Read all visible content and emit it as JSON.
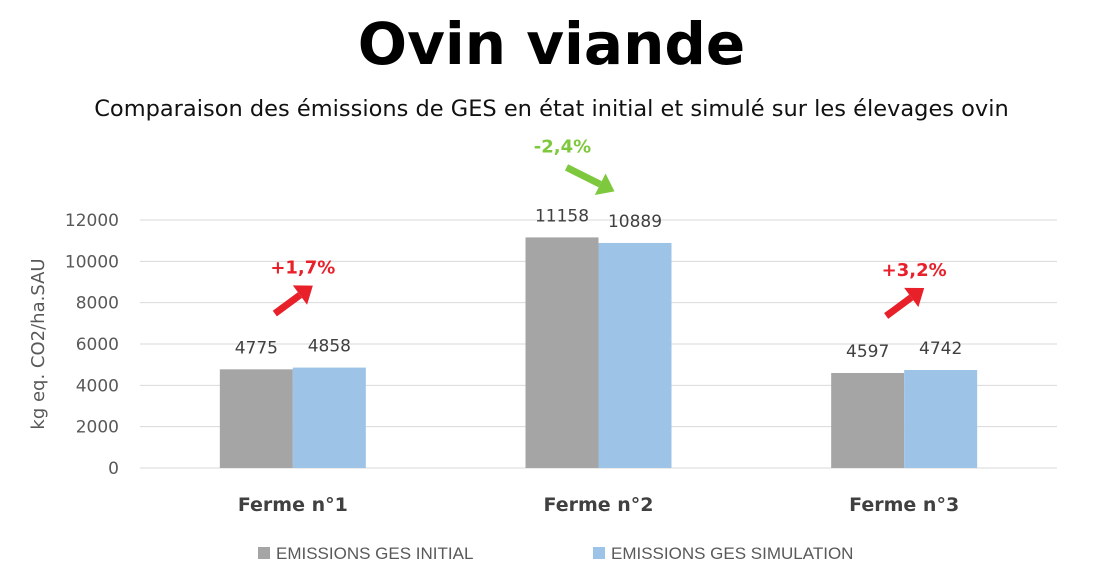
{
  "chart_data": {
    "type": "bar",
    "title": "Ovin viande",
    "subtitle": "Comparaison des émissions de GES en état initial et simulé sur les élevages ovin",
    "ylabel": "kg eq. CO2/ha.SAU",
    "xlabel": "",
    "ylim": [
      0,
      12000
    ],
    "yticks": [
      0,
      2000,
      4000,
      6000,
      8000,
      10000,
      12000
    ],
    "grid": true,
    "legend_position": "bottom",
    "categories": [
      "Ferme n°1",
      "Ferme n°2",
      "Ferme n°3"
    ],
    "series": [
      {
        "name": "EMISSIONS GES INITIAL",
        "values": [
          4775,
          11158,
          4597
        ],
        "color": "#a5a5a5"
      },
      {
        "name": "EMISSIONS GES SIMULATION",
        "values": [
          4858,
          10889,
          4742
        ],
        "color": "#9dc3e6"
      }
    ],
    "annotations": [
      {
        "text": "+1,7%",
        "direction": "up",
        "color": "#e8202a"
      },
      {
        "text": "-2,4%",
        "direction": "down",
        "color": "#7ec83e"
      },
      {
        "text": "+3,2%",
        "direction": "up",
        "color": "#e8202a"
      }
    ]
  }
}
